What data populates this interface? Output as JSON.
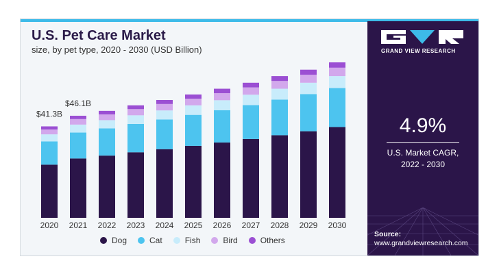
{
  "chart_data": {
    "type": "bar",
    "stacked": true,
    "title": "U.S. Pet Care Market",
    "subtitle": "size, by pet type, 2020 - 2030 (USD Billion)",
    "categories": [
      "2020",
      "2021",
      "2022",
      "2023",
      "2024",
      "2025",
      "2026",
      "2027",
      "2028",
      "2029",
      "2030"
    ],
    "series": [
      {
        "name": "Dog",
        "color": "#2b1549",
        "values": [
          24.0,
          26.8,
          28.1,
          29.6,
          31.0,
          32.5,
          34.0,
          35.6,
          37.3,
          39.1,
          41.0
        ]
      },
      {
        "name": "Cat",
        "color": "#4dc4ef",
        "values": [
          10.5,
          11.7,
          12.3,
          12.8,
          13.4,
          14.0,
          14.6,
          15.3,
          16.1,
          16.8,
          17.6
        ]
      },
      {
        "name": "Fish",
        "color": "#c8ecfb",
        "values": [
          3.2,
          3.6,
          3.7,
          3.9,
          4.1,
          4.3,
          4.5,
          4.7,
          4.9,
          5.1,
          5.4
        ]
      },
      {
        "name": "Bird",
        "color": "#d2a8ec",
        "values": [
          2.2,
          2.5,
          2.6,
          2.8,
          2.9,
          3.0,
          3.2,
          3.3,
          3.5,
          3.6,
          3.8
        ]
      },
      {
        "name": "Others",
        "color": "#9b4fd3",
        "values": [
          1.4,
          1.5,
          1.6,
          1.7,
          1.8,
          1.9,
          2.0,
          2.1,
          2.2,
          2.3,
          2.4
        ]
      }
    ],
    "data_labels": [
      {
        "category": "2020",
        "text": "$41.3B"
      },
      {
        "category": "2021",
        "text": "$46.1B"
      }
    ],
    "ylim": [
      0,
      73
    ],
    "grid": false,
    "legend_position": "bottom"
  },
  "brand": {
    "name": "GRAND VIEW RESEARCH",
    "colors": {
      "accent": "#3dbbe9",
      "panel": "#2b1549",
      "chart_bg": "#f3f6f9"
    }
  },
  "cagr": {
    "value": "4.9%",
    "label_line1": "U.S. Market CAGR,",
    "label_line2": "2022 - 2030"
  },
  "source": {
    "label": "Source:",
    "url": "www.grandviewresearch.com"
  }
}
